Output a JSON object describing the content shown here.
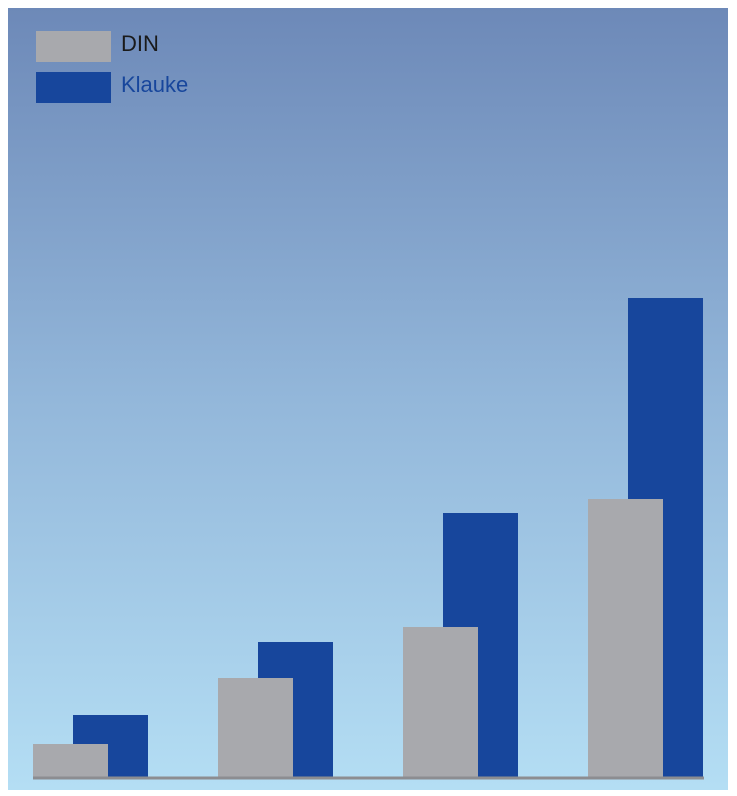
{
  "chart_data": {
    "type": "bar",
    "categories": [
      null,
      null,
      null,
      null
    ],
    "series": [
      {
        "name": "DIN",
        "color": "#a8a9ad",
        "values": [
          34,
          100,
          151,
          279
        ]
      },
      {
        "name": "Klauke",
        "color": "#17469c",
        "values": [
          63,
          136,
          265,
          480
        ]
      }
    ],
    "ylim": [
      0,
      770
    ],
    "legend": "top-left"
  }
}
